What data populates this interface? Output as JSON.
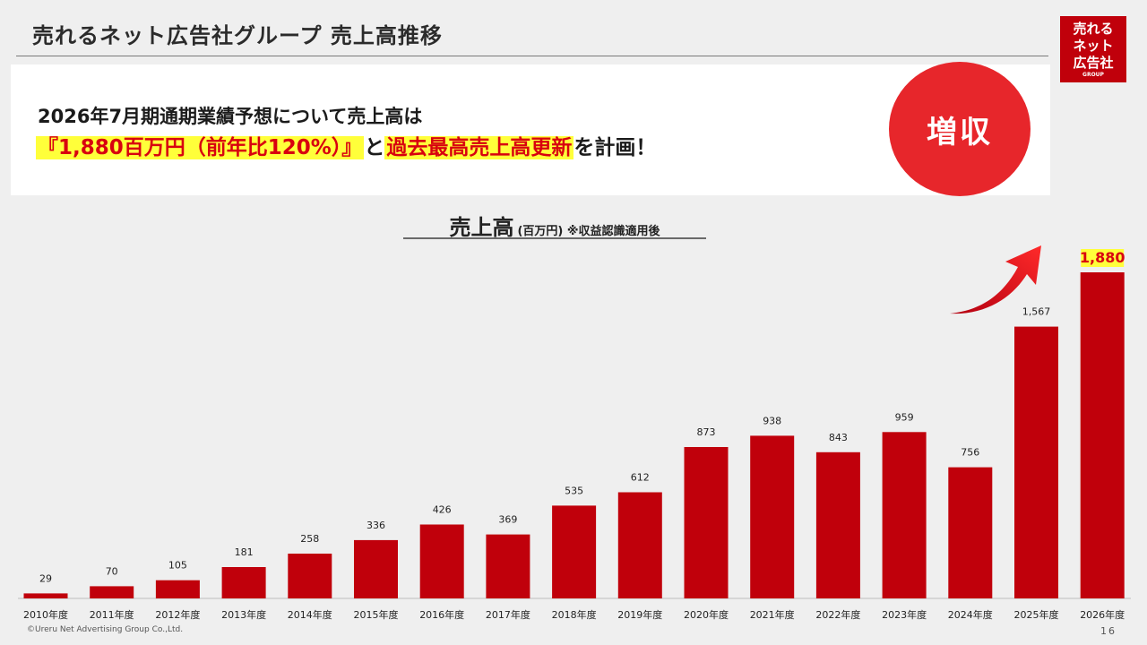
{
  "header": {
    "title": "売れるネット広告社グループ 売上高推移",
    "logo": {
      "line1": "売れる",
      "line2": "ネット",
      "line3": "広告社",
      "sub": "GROUP"
    }
  },
  "forecast": {
    "line1": "2026年7月期通期業績予想について売上高は",
    "highlight1": "『1,880百万円（前年比120%）』",
    "connector": "と",
    "highlight2": "過去最高売上高更新",
    "tail": "を計画！",
    "badge": "増収"
  },
  "chart_title": {
    "main": "売上高",
    "sub": "(百万円) ※収益認識適用後"
  },
  "chart_data": {
    "type": "bar",
    "categories": [
      "2010年度",
      "2011年度",
      "2012年度",
      "2013年度",
      "2014年度",
      "2015年度",
      "2016年度",
      "2017年度",
      "2018年度",
      "2019年度",
      "2020年度",
      "2021年度",
      "2022年度",
      "2023年度",
      "2024年度",
      "2025年度",
      "2026年度"
    ],
    "values": [
      29,
      70,
      105,
      181,
      258,
      336,
      426,
      369,
      535,
      612,
      873,
      938,
      843,
      959,
      756,
      1567,
      1880
    ],
    "value_labels": [
      "29",
      "70",
      "105",
      "181",
      "258",
      "336",
      "426",
      "369",
      "535",
      "612",
      "873",
      "938",
      "843",
      "959",
      "756",
      "1,567",
      "1,880"
    ],
    "highlight_index": 16,
    "bar_color": "#c0000b",
    "highlight_label_color": "#d8000f",
    "highlight_label_bg": "#ffff3a",
    "ylim": [
      0,
      1880
    ],
    "grid": false
  },
  "footer": {
    "copyright": "©Ureru Net Advertising Group Co.,Ltd.",
    "page": "16"
  }
}
